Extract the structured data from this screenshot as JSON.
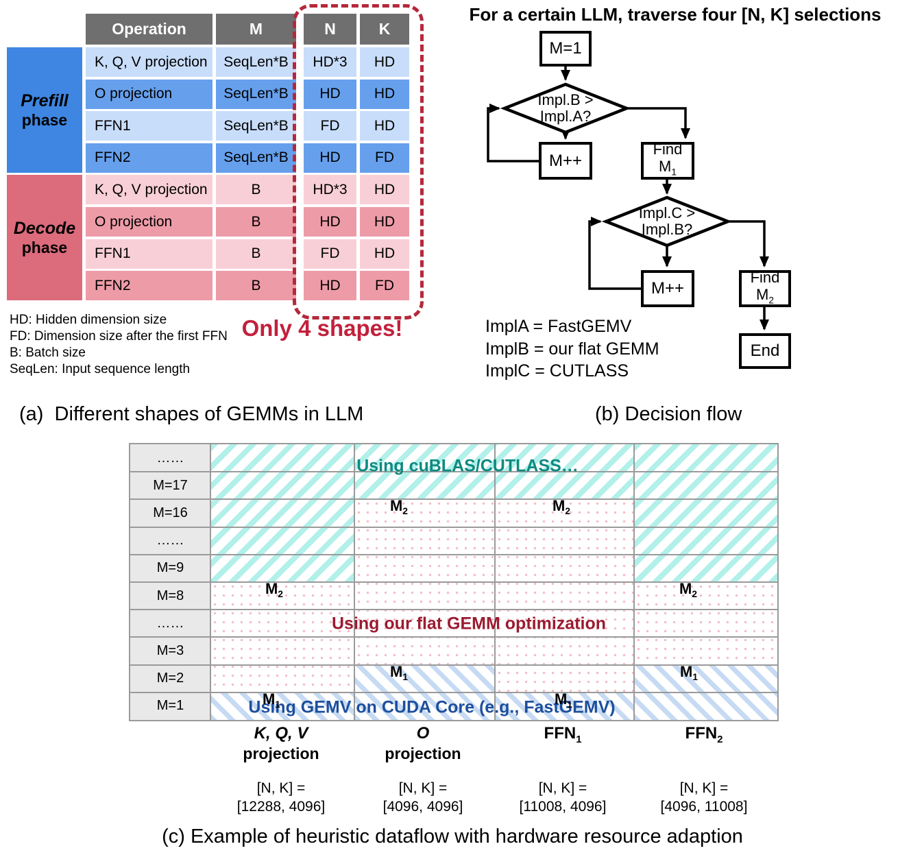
{
  "colors": {
    "header_bg": "#6f6f6f",
    "prefill_label_bg": "#3e86e2",
    "prefill_row_light": "#c8ddfa",
    "prefill_row_dark": "#66a0ed",
    "decode_label_bg": "#dc6b7c",
    "decode_row_light": "#f8cfd6",
    "decode_row_dark": "#ee9ba8",
    "highlight_red": "#c2203c",
    "dashed_box_red": "#b5283b",
    "cublas_text": "#0e8a80",
    "flat_gemm_text": "#9c1b31",
    "gemv_text": "#1d4f9c",
    "teal_stripe": "#b2f0ea",
    "blue_stripe": "#c6daf3",
    "pink_dot": "#f5bac6",
    "grid_line": "#9a9a9a",
    "row_label_bg": "#e9e9e9"
  },
  "panel_a": {
    "caption": "(a)  Different shapes of GEMMs in LLM",
    "highlight": "Only 4 shapes!",
    "notes": [
      "HD: Hidden dimension size",
      "FD: Dimension size after the first FFN",
      "B: Batch size",
      "SeqLen: Input sequence length"
    ],
    "table": {
      "headers": [
        "Operation",
        "M",
        "N",
        "K"
      ],
      "phases": [
        {
          "label": "Prefill",
          "sublabel": "phase",
          "rows": [
            {
              "operation": "K, Q, V projection",
              "m": "SeqLen*B",
              "n": "HD*3",
              "k": "HD"
            },
            {
              "operation": "O projection",
              "m": "SeqLen*B",
              "n": "HD",
              "k": "HD"
            },
            {
              "operation": "FFN1",
              "m": "SeqLen*B",
              "n": "FD",
              "k": "HD"
            },
            {
              "operation": "FFN2",
              "m": "SeqLen*B",
              "n": "HD",
              "k": "FD"
            }
          ]
        },
        {
          "label": "Decode",
          "sublabel": "phase",
          "rows": [
            {
              "operation": "K, Q, V projection",
              "m": "B",
              "n": "HD*3",
              "k": "HD"
            },
            {
              "operation": "O projection",
              "m": "B",
              "n": "HD",
              "k": "HD"
            },
            {
              "operation": "FFN1",
              "m": "B",
              "n": "FD",
              "k": "HD"
            },
            {
              "operation": "FFN2",
              "m": "B",
              "n": "HD",
              "k": "FD"
            }
          ]
        }
      ]
    }
  },
  "panel_b": {
    "title": "For a certain LLM, traverse four [N, K] selections",
    "caption": "(b) Decision flow",
    "boxes": {
      "start": "M=1",
      "inc1": "M++",
      "inc2": "M++",
      "end": "End",
      "find1": {
        "line1": "Find",
        "base": "M",
        "sub": "1"
      },
      "find2": {
        "line1": "Find",
        "base": "M",
        "sub": "2"
      }
    },
    "diamonds": {
      "cond1": {
        "line1": "Impl.B >",
        "line2": "Impl.A?"
      },
      "cond2": {
        "line1": "Impl.C >",
        "line2": "Impl.B?"
      }
    },
    "legend": [
      "ImplA = FastGEMV",
      "ImplB = our flat GEMM",
      "ImplC = CUTLASS"
    ]
  },
  "panel_c": {
    "caption": "(c) Example of heuristic dataflow with hardware resource adaption",
    "row_labels": [
      "……",
      "M=17",
      "M=16",
      "……",
      "M=9",
      "M=8",
      "……",
      "M=3",
      "M=2",
      "M=1"
    ],
    "regions": {
      "cublas": "Using cuBLAS/CUTLASS…",
      "flat_gemm": "Using our flat GEMM optimization",
      "gemv": "Using GEMV on CUDA Core (e.g., FastGEMV)"
    },
    "marker_m2": {
      "base": "M",
      "sub": "2"
    },
    "marker_m1": {
      "base": "M",
      "sub": "1"
    },
    "columns": [
      {
        "label": "K, Q, V",
        "sublabel": "projection",
        "nk_line1": "[N, K] =",
        "nk_line2": "[12288, 4096]"
      },
      {
        "label": "O",
        "sublabel": "projection",
        "nk_line1": "[N, K] =",
        "nk_line2": "[4096, 4096]"
      },
      {
        "label": "FFN",
        "sub": "1",
        "nk_line1": "[N, K] =",
        "nk_line2": "[11008, 4096]"
      },
      {
        "label": "FFN",
        "sub": "2",
        "nk_line1": "[N, K] =",
        "nk_line2": "[4096, 11008]"
      }
    ],
    "region_rows": {
      "cublas_end_row_per_column": [
        5,
        2,
        2,
        5
      ],
      "gemv_start_row_per_column": [
        9,
        8,
        9,
        8
      ]
    }
  }
}
